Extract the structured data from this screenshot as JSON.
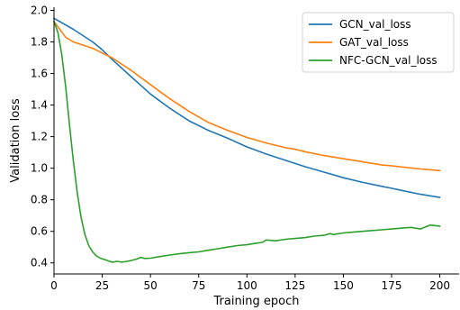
{
  "chart_data": {
    "type": "line",
    "xlabel": "Training epoch",
    "ylabel": "Validation loss",
    "xlim": [
      0,
      210
    ],
    "ylim": [
      0.33,
      2.02
    ],
    "xticks": [
      0,
      25,
      50,
      75,
      100,
      125,
      150,
      175,
      200
    ],
    "yticks": [
      0.4,
      0.6,
      0.8,
      1.0,
      1.2,
      1.4,
      1.6,
      1.8,
      2.0
    ],
    "ytick_labels": [
      "0.4",
      "0.6",
      "0.8",
      "1.0",
      "1.2",
      "1.4",
      "1.6",
      "1.8",
      "2.0"
    ],
    "legend_position": "top-right",
    "grid": false,
    "series": [
      {
        "name": "GCN_val_loss",
        "color": "#1f77b4",
        "x": [
          0,
          10,
          20,
          25,
          30,
          40,
          50,
          60,
          70,
          75,
          80,
          90,
          100,
          110,
          120,
          125,
          130,
          140,
          150,
          160,
          170,
          175,
          180,
          190,
          200
        ],
        "y": [
          1.95,
          1.88,
          1.8,
          1.75,
          1.69,
          1.58,
          1.47,
          1.38,
          1.3,
          1.27,
          1.24,
          1.19,
          1.135,
          1.09,
          1.05,
          1.03,
          1.01,
          0.975,
          0.94,
          0.91,
          0.885,
          0.873,
          0.86,
          0.835,
          0.815
        ]
      },
      {
        "name": "GAT_val_loss",
        "color": "#ff7f0e",
        "x": [
          0,
          3,
          6,
          10,
          15,
          20,
          25,
          30,
          40,
          50,
          60,
          70,
          75,
          80,
          90,
          100,
          110,
          120,
          125,
          130,
          140,
          150,
          160,
          170,
          175,
          180,
          190,
          200
        ],
        "y": [
          1.93,
          1.88,
          1.83,
          1.8,
          1.78,
          1.76,
          1.73,
          1.7,
          1.62,
          1.53,
          1.44,
          1.36,
          1.325,
          1.29,
          1.24,
          1.195,
          1.16,
          1.13,
          1.12,
          1.105,
          1.08,
          1.06,
          1.04,
          1.02,
          1.015,
          1.008,
          0.995,
          0.985
        ]
      },
      {
        "name": "NFC-GCN_val_loss",
        "color": "#2ca02c",
        "x": [
          0,
          2,
          4,
          6,
          8,
          10,
          12,
          14,
          16,
          18,
          20,
          22,
          24,
          27,
          30,
          33,
          35,
          38,
          40,
          43,
          45,
          47,
          50,
          55,
          60,
          65,
          70,
          75,
          80,
          85,
          90,
          95,
          100,
          105,
          108,
          110,
          115,
          120,
          125,
          130,
          135,
          140,
          143,
          145,
          150,
          155,
          160,
          165,
          170,
          175,
          180,
          185,
          190,
          195,
          200
        ],
        "y": [
          1.93,
          1.86,
          1.72,
          1.52,
          1.28,
          1.05,
          0.85,
          0.69,
          0.58,
          0.51,
          0.47,
          0.445,
          0.43,
          0.418,
          0.405,
          0.41,
          0.405,
          0.41,
          0.415,
          0.425,
          0.435,
          0.428,
          0.43,
          0.44,
          0.45,
          0.458,
          0.465,
          0.47,
          0.48,
          0.49,
          0.5,
          0.51,
          0.515,
          0.525,
          0.53,
          0.545,
          0.54,
          0.55,
          0.555,
          0.56,
          0.57,
          0.575,
          0.585,
          0.58,
          0.59,
          0.595,
          0.6,
          0.605,
          0.61,
          0.615,
          0.62,
          0.625,
          0.615,
          0.64,
          0.632
        ]
      }
    ]
  }
}
